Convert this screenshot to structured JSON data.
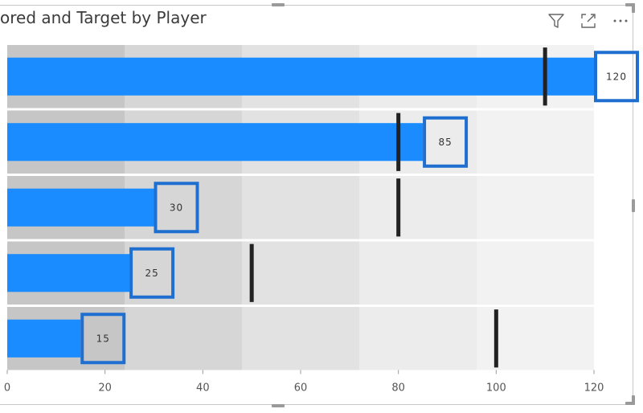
{
  "title": "ored and Target by Player",
  "header_icons": [
    "filter-icon",
    "focus-mode-icon",
    "more-options-icon"
  ],
  "chart_data": {
    "type": "bar",
    "orientation": "horizontal",
    "subtype": "bullet",
    "title": "ored and Target by Player",
    "series": [
      {
        "values": [
          120,
          85,
          30,
          25,
          15
        ],
        "color": "#1a8cff"
      },
      {
        "values": [
          110,
          80,
          80,
          50,
          100
        ],
        "color": "#222222"
      }
    ],
    "band_thresholds": [
      24,
      48,
      72,
      96,
      120
    ],
    "band_colors": [
      "#c6c6c6",
      "#d6d6d6",
      "#e2e2e2",
      "#ececec",
      "#f2f2f2"
    ],
    "data_labels": [
      "120",
      "85",
      "30",
      "25",
      "15"
    ],
    "xlim": [
      0,
      120
    ],
    "x_ticks": [
      "0",
      "20",
      "40",
      "60",
      "80",
      "100",
      "120"
    ],
    "highlight_color": "#1f6fd1",
    "grid": false
  }
}
